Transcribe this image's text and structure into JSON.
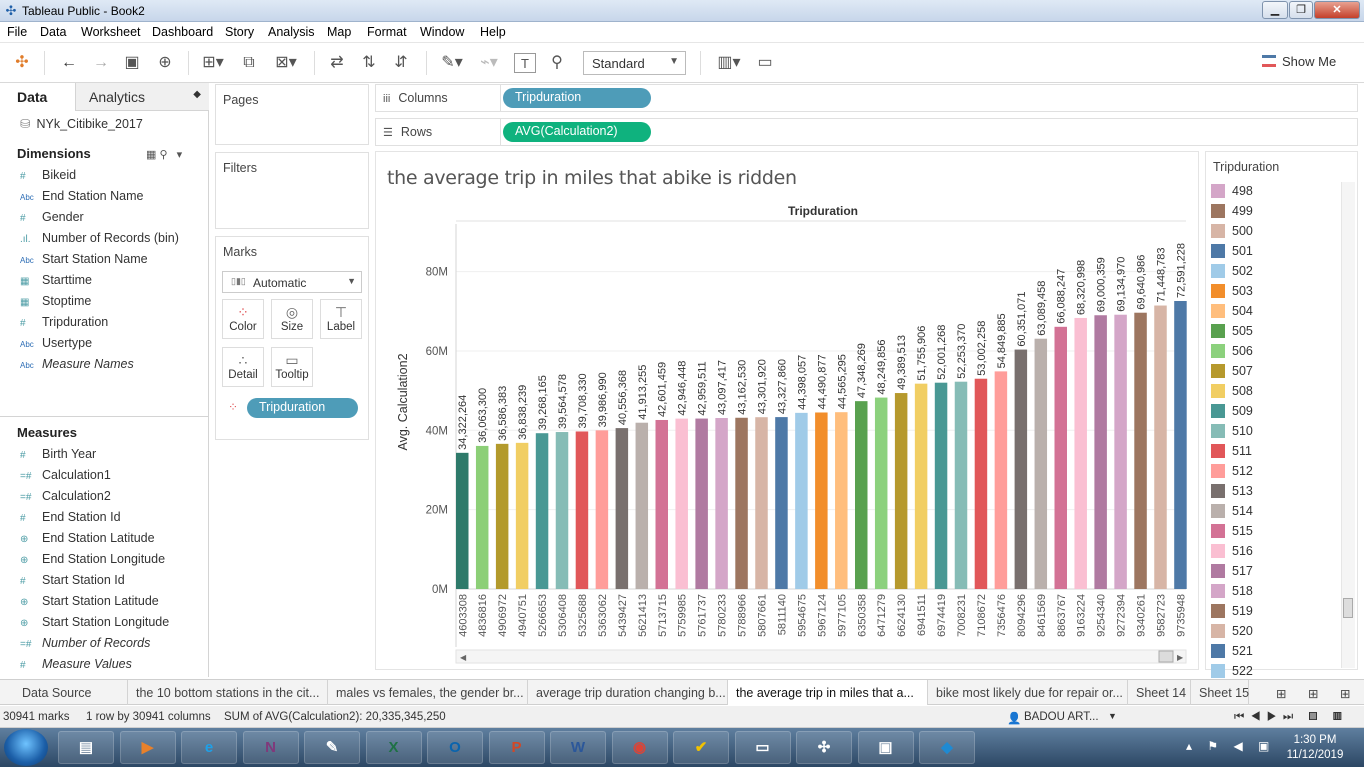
{
  "window": {
    "title": "Tableau Public - Book2"
  },
  "menu": [
    "File",
    "Data",
    "Worksheet",
    "Dashboard",
    "Story",
    "Analysis",
    "Map",
    "Format",
    "Window",
    "Help"
  ],
  "toolbar": {
    "fit": "Standard",
    "show_me": "Show Me"
  },
  "data_pane": {
    "tab_data": "Data",
    "tab_analytics": "Analytics",
    "datasource": "NYk_Citibike_2017",
    "dimensions_header": "Dimensions",
    "dimensions": [
      {
        "label": "Bikeid",
        "icon": "number-icon",
        "italic": false
      },
      {
        "label": "End Station Name",
        "icon": "abc-icon",
        "italic": false
      },
      {
        "label": "Gender",
        "icon": "number-icon",
        "italic": false
      },
      {
        "label": "Number of Records (bin)",
        "icon": "bin-icon",
        "italic": false
      },
      {
        "label": "Start Station Name",
        "icon": "abc-icon",
        "italic": false
      },
      {
        "label": "Starttime",
        "icon": "calendar-icon",
        "italic": false
      },
      {
        "label": "Stoptime",
        "icon": "calendar-icon",
        "italic": false
      },
      {
        "label": "Tripduration",
        "icon": "number-icon",
        "italic": false
      },
      {
        "label": "Usertype",
        "icon": "abc-icon",
        "italic": false
      },
      {
        "label": "Measure Names",
        "icon": "abc-icon",
        "italic": true
      }
    ],
    "measures_header": "Measures",
    "measures": [
      {
        "label": "Birth Year",
        "icon": "number-icon",
        "italic": false
      },
      {
        "label": "Calculation1",
        "icon": "calc-icon",
        "italic": false
      },
      {
        "label": "Calculation2",
        "icon": "calc-icon",
        "italic": false
      },
      {
        "label": "End Station Id",
        "icon": "number-icon",
        "italic": false
      },
      {
        "label": "End Station Latitude",
        "icon": "globe-icon",
        "italic": false
      },
      {
        "label": "End Station Longitude",
        "icon": "globe-icon",
        "italic": false
      },
      {
        "label": "Start Station Id",
        "icon": "number-icon",
        "italic": false
      },
      {
        "label": "Start Station Latitude",
        "icon": "globe-icon",
        "italic": false
      },
      {
        "label": "Start Station Longitude",
        "icon": "globe-icon",
        "italic": false
      },
      {
        "label": "Number of Records",
        "icon": "calc-icon",
        "italic": true
      },
      {
        "label": "Measure Values",
        "icon": "number-icon",
        "italic": true
      }
    ]
  },
  "cards": {
    "pages": "Pages",
    "filters": "Filters",
    "marks": "Marks",
    "mark_type": "Automatic",
    "mark_buttons": [
      "Color",
      "Size",
      "Label",
      "Detail",
      "Tooltip"
    ],
    "marks_pill": "Tripduration"
  },
  "shelves": {
    "columns_label": "Columns",
    "columns_pill": "Tripduration",
    "rows_label": "Rows",
    "rows_pill": "AVG(Calculation2)"
  },
  "viz": {
    "title": "the average trip in miles that abike is ridden"
  },
  "chart_data": {
    "type": "bar",
    "title": "Tripduration",
    "ylabel": "Avg. Calculation2",
    "ylim": [
      0,
      92000000
    ],
    "yticks": [
      {
        "v": 0,
        "label": "0M"
      },
      {
        "v": 20000000,
        "label": "20M"
      },
      {
        "v": 40000000,
        "label": "40M"
      },
      {
        "v": 60000000,
        "label": "60M"
      },
      {
        "v": 80000000,
        "label": "80M"
      }
    ],
    "grid": true,
    "categories": [
      "4603308",
      "4836816",
      "4906972",
      "4940751",
      "5266653",
      "5306408",
      "5325688",
      "5363062",
      "5439427",
      "5621413",
      "5713715",
      "5759985",
      "5761737",
      "5780233",
      "5788966",
      "5807661",
      "5811140",
      "5954675",
      "5967124",
      "5977105",
      "6350358",
      "6471279",
      "6624130",
      "6941511",
      "6974419",
      "7008231",
      "7108672",
      "7356476",
      "8094296",
      "8461569",
      "8863767",
      "9163224",
      "9254340",
      "9272394",
      "9340261",
      "9582723",
      "9735948"
    ],
    "values": [
      34322264,
      36063300,
      36586383,
      36838239,
      39268165,
      39564578,
      39708330,
      39986990,
      40556368,
      41913255,
      42601459,
      42946448,
      42959511,
      43097417,
      43162530,
      43301920,
      43327860,
      44398057,
      44490877,
      44565295,
      47348269,
      48249856,
      49389513,
      51755906,
      52001268,
      52253370,
      53002258,
      54849885,
      60351071,
      63089458,
      66088247,
      68320998,
      69000359,
      69134970,
      69640986,
      71448783,
      72591228
    ],
    "value_labels": [
      "34,322,264",
      "36,063,300",
      "36,586,383",
      "36,838,239",
      "39,268,165",
      "39,564,578",
      "39,708,330",
      "39,986,990",
      "40,556,368",
      "41,913,255",
      "42,601,459",
      "42,946,448",
      "42,959,511",
      "43,097,417",
      "43,162,530",
      "43,301,920",
      "43,327,860",
      "44,398,057",
      "44,490,877",
      "44,565,295",
      "47,348,269",
      "48,249,856",
      "49,389,513",
      "51,755,906",
      "52,001,268",
      "52,253,370",
      "53,002,258",
      "54,849,885",
      "60,351,071",
      "63,089,458",
      "66,088,247",
      "68,320,998",
      "69,000,359",
      "69,134,970",
      "69,640,986",
      "71,448,783",
      "72,591,228"
    ],
    "colors": [
      "#2e7a6a",
      "#8ccf77",
      "#b39a2c",
      "#f1ce63",
      "#499894",
      "#86bcb6",
      "#e15759",
      "#ff9d9a",
      "#79706e",
      "#bab0ac",
      "#d37295",
      "#fabfd2",
      "#b07aa1",
      "#d4a6c8",
      "#9d7660",
      "#d7b5a6",
      "#4e79a7",
      "#a0cbe8",
      "#f28e2b",
      "#ffbe7d",
      "#59a14f",
      "#8cd17d",
      "#b6992d",
      "#f1ce63",
      "#499894",
      "#86bcb6",
      "#e15759",
      "#ff9d9a",
      "#79706e",
      "#bab0ac",
      "#d37295",
      "#fabfd2",
      "#b07aa1",
      "#d4a6c8",
      "#9d7660",
      "#d7b5a6",
      "#4e79a7"
    ]
  },
  "legend": {
    "title": "Tripduration",
    "items": [
      {
        "label": "498",
        "color": "#d4a6c8"
      },
      {
        "label": "499",
        "color": "#9d7660"
      },
      {
        "label": "500",
        "color": "#d7b5a6"
      },
      {
        "label": "501",
        "color": "#4e79a7"
      },
      {
        "label": "502",
        "color": "#a0cbe8"
      },
      {
        "label": "503",
        "color": "#f28e2b"
      },
      {
        "label": "504",
        "color": "#ffbe7d"
      },
      {
        "label": "505",
        "color": "#59a14f"
      },
      {
        "label": "506",
        "color": "#8cd17d"
      },
      {
        "label": "507",
        "color": "#b6992d"
      },
      {
        "label": "508",
        "color": "#f1ce63"
      },
      {
        "label": "509",
        "color": "#499894"
      },
      {
        "label": "510",
        "color": "#86bcb6"
      },
      {
        "label": "511",
        "color": "#e15759"
      },
      {
        "label": "512",
        "color": "#ff9d9a"
      },
      {
        "label": "513",
        "color": "#79706e"
      },
      {
        "label": "514",
        "color": "#bab0ac"
      },
      {
        "label": "515",
        "color": "#d37295"
      },
      {
        "label": "516",
        "color": "#fabfd2"
      },
      {
        "label": "517",
        "color": "#b07aa1"
      },
      {
        "label": "518",
        "color": "#d4a6c8"
      },
      {
        "label": "519",
        "color": "#9d7660"
      },
      {
        "label": "520",
        "color": "#d7b5a6"
      },
      {
        "label": "521",
        "color": "#4e79a7"
      },
      {
        "label": "522",
        "color": "#a0cbe8"
      }
    ]
  },
  "sheet_tabs": [
    {
      "label": "Data Source",
      "active": false
    },
    {
      "label": "the 10 bottom stations in the cit...",
      "active": false
    },
    {
      "label": "males vs females, the gender br...",
      "active": false
    },
    {
      "label": "average trip duration changing b...",
      "active": false
    },
    {
      "label": "the average trip in miles that a...",
      "active": true
    },
    {
      "label": "bike most likely due for repair or...",
      "active": false
    },
    {
      "label": "Sheet 14",
      "active": false
    },
    {
      "label": "Sheet 15",
      "active": false
    }
  ],
  "status": {
    "marks": "30941 marks",
    "dims": "1 row by 30941 columns",
    "sum": "SUM of AVG(Calculation2): 20,335,345,250",
    "user": "BADOU ART..."
  },
  "taskbar": {
    "apps": [
      "file-explorer",
      "media-player",
      "internet-explorer",
      "onenote",
      "pen-tool",
      "excel",
      "outlook",
      "powerpoint",
      "word",
      "chrome",
      "norton",
      "terminal",
      "tableau",
      "photo-viewer",
      "vscode"
    ],
    "time": "1:30 PM",
    "date": "11/12/2019"
  }
}
